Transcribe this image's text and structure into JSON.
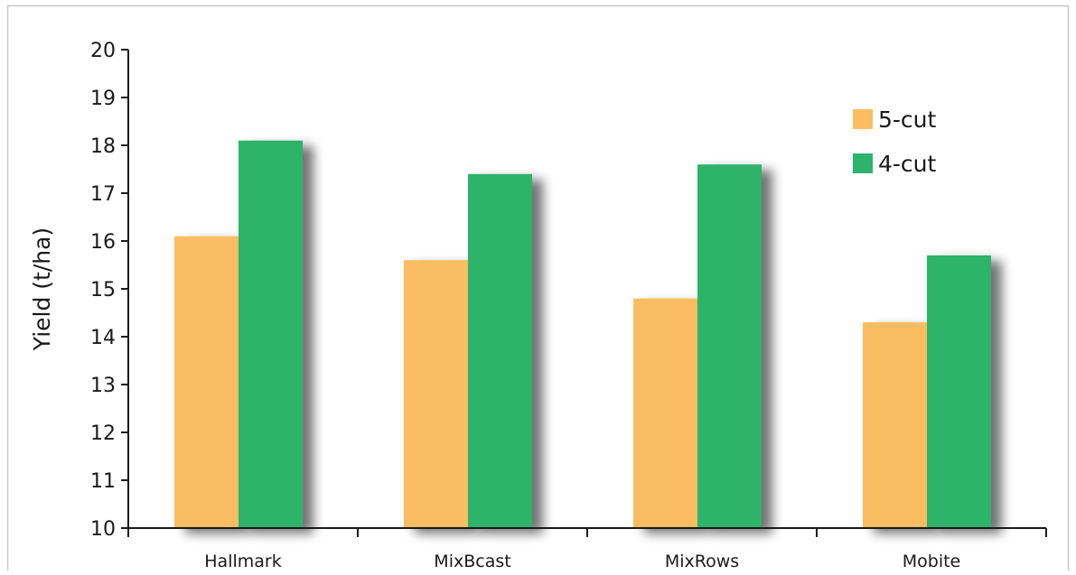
{
  "chart_data": {
    "type": "bar",
    "title": "",
    "xlabel": "",
    "ylabel": "Yield (t/ha)",
    "categories": [
      "Hallmark",
      "MixBcast",
      "MixRows",
      "Mobite"
    ],
    "series": [
      {
        "name": "5-cut",
        "color": "#FBBD62",
        "values": [
          16.1,
          15.6,
          14.8,
          14.3
        ]
      },
      {
        "name": "4-cut",
        "color": "#2DB36B",
        "values": [
          18.1,
          17.4,
          17.6,
          15.7
        ]
      }
    ],
    "ylim": [
      10,
      20
    ],
    "yticks": [
      10,
      11,
      12,
      13,
      14,
      15,
      16,
      17,
      18,
      19,
      20
    ],
    "grid": false,
    "legend_position": "top-right",
    "bar_shadow": true
  }
}
